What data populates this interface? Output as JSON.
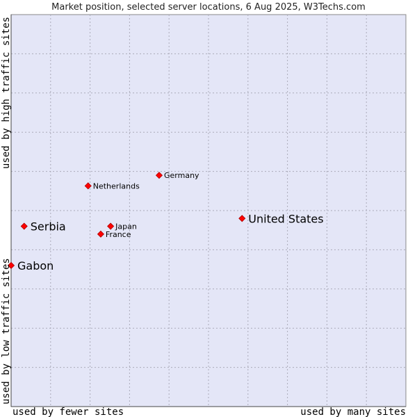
{
  "chart_data": {
    "type": "scatter",
    "title": "Market position, selected server locations, 6 Aug 2025, W3Techs.com",
    "xlabel_low": "used by fewer sites",
    "xlabel_high": "used by many sites",
    "ylabel_low": "used by low traffic sites",
    "ylabel_high": "used by high traffic sites",
    "xlim": [
      0,
      10
    ],
    "ylim": [
      0,
      10
    ],
    "grid": true,
    "colors": {
      "plot_background": "#e4e6f7",
      "grid": "#aaaab9",
      "marker": "#ff0000",
      "marker_stroke": "#aa0000"
    },
    "points": [
      {
        "name": "United States",
        "x": 5.85,
        "y": 4.8,
        "emphasis": true
      },
      {
        "name": "Germany",
        "x": 3.75,
        "y": 5.9,
        "emphasis": false
      },
      {
        "name": "Netherlands",
        "x": 1.95,
        "y": 5.63,
        "emphasis": false
      },
      {
        "name": "Serbia",
        "x": 0.33,
        "y": 4.6,
        "emphasis": true
      },
      {
        "name": "Japan",
        "x": 2.52,
        "y": 4.6,
        "emphasis": false
      },
      {
        "name": "France",
        "x": 2.27,
        "y": 4.4,
        "emphasis": false
      },
      {
        "name": "Gabon",
        "x": 0.0,
        "y": 3.6,
        "emphasis": true
      }
    ]
  }
}
